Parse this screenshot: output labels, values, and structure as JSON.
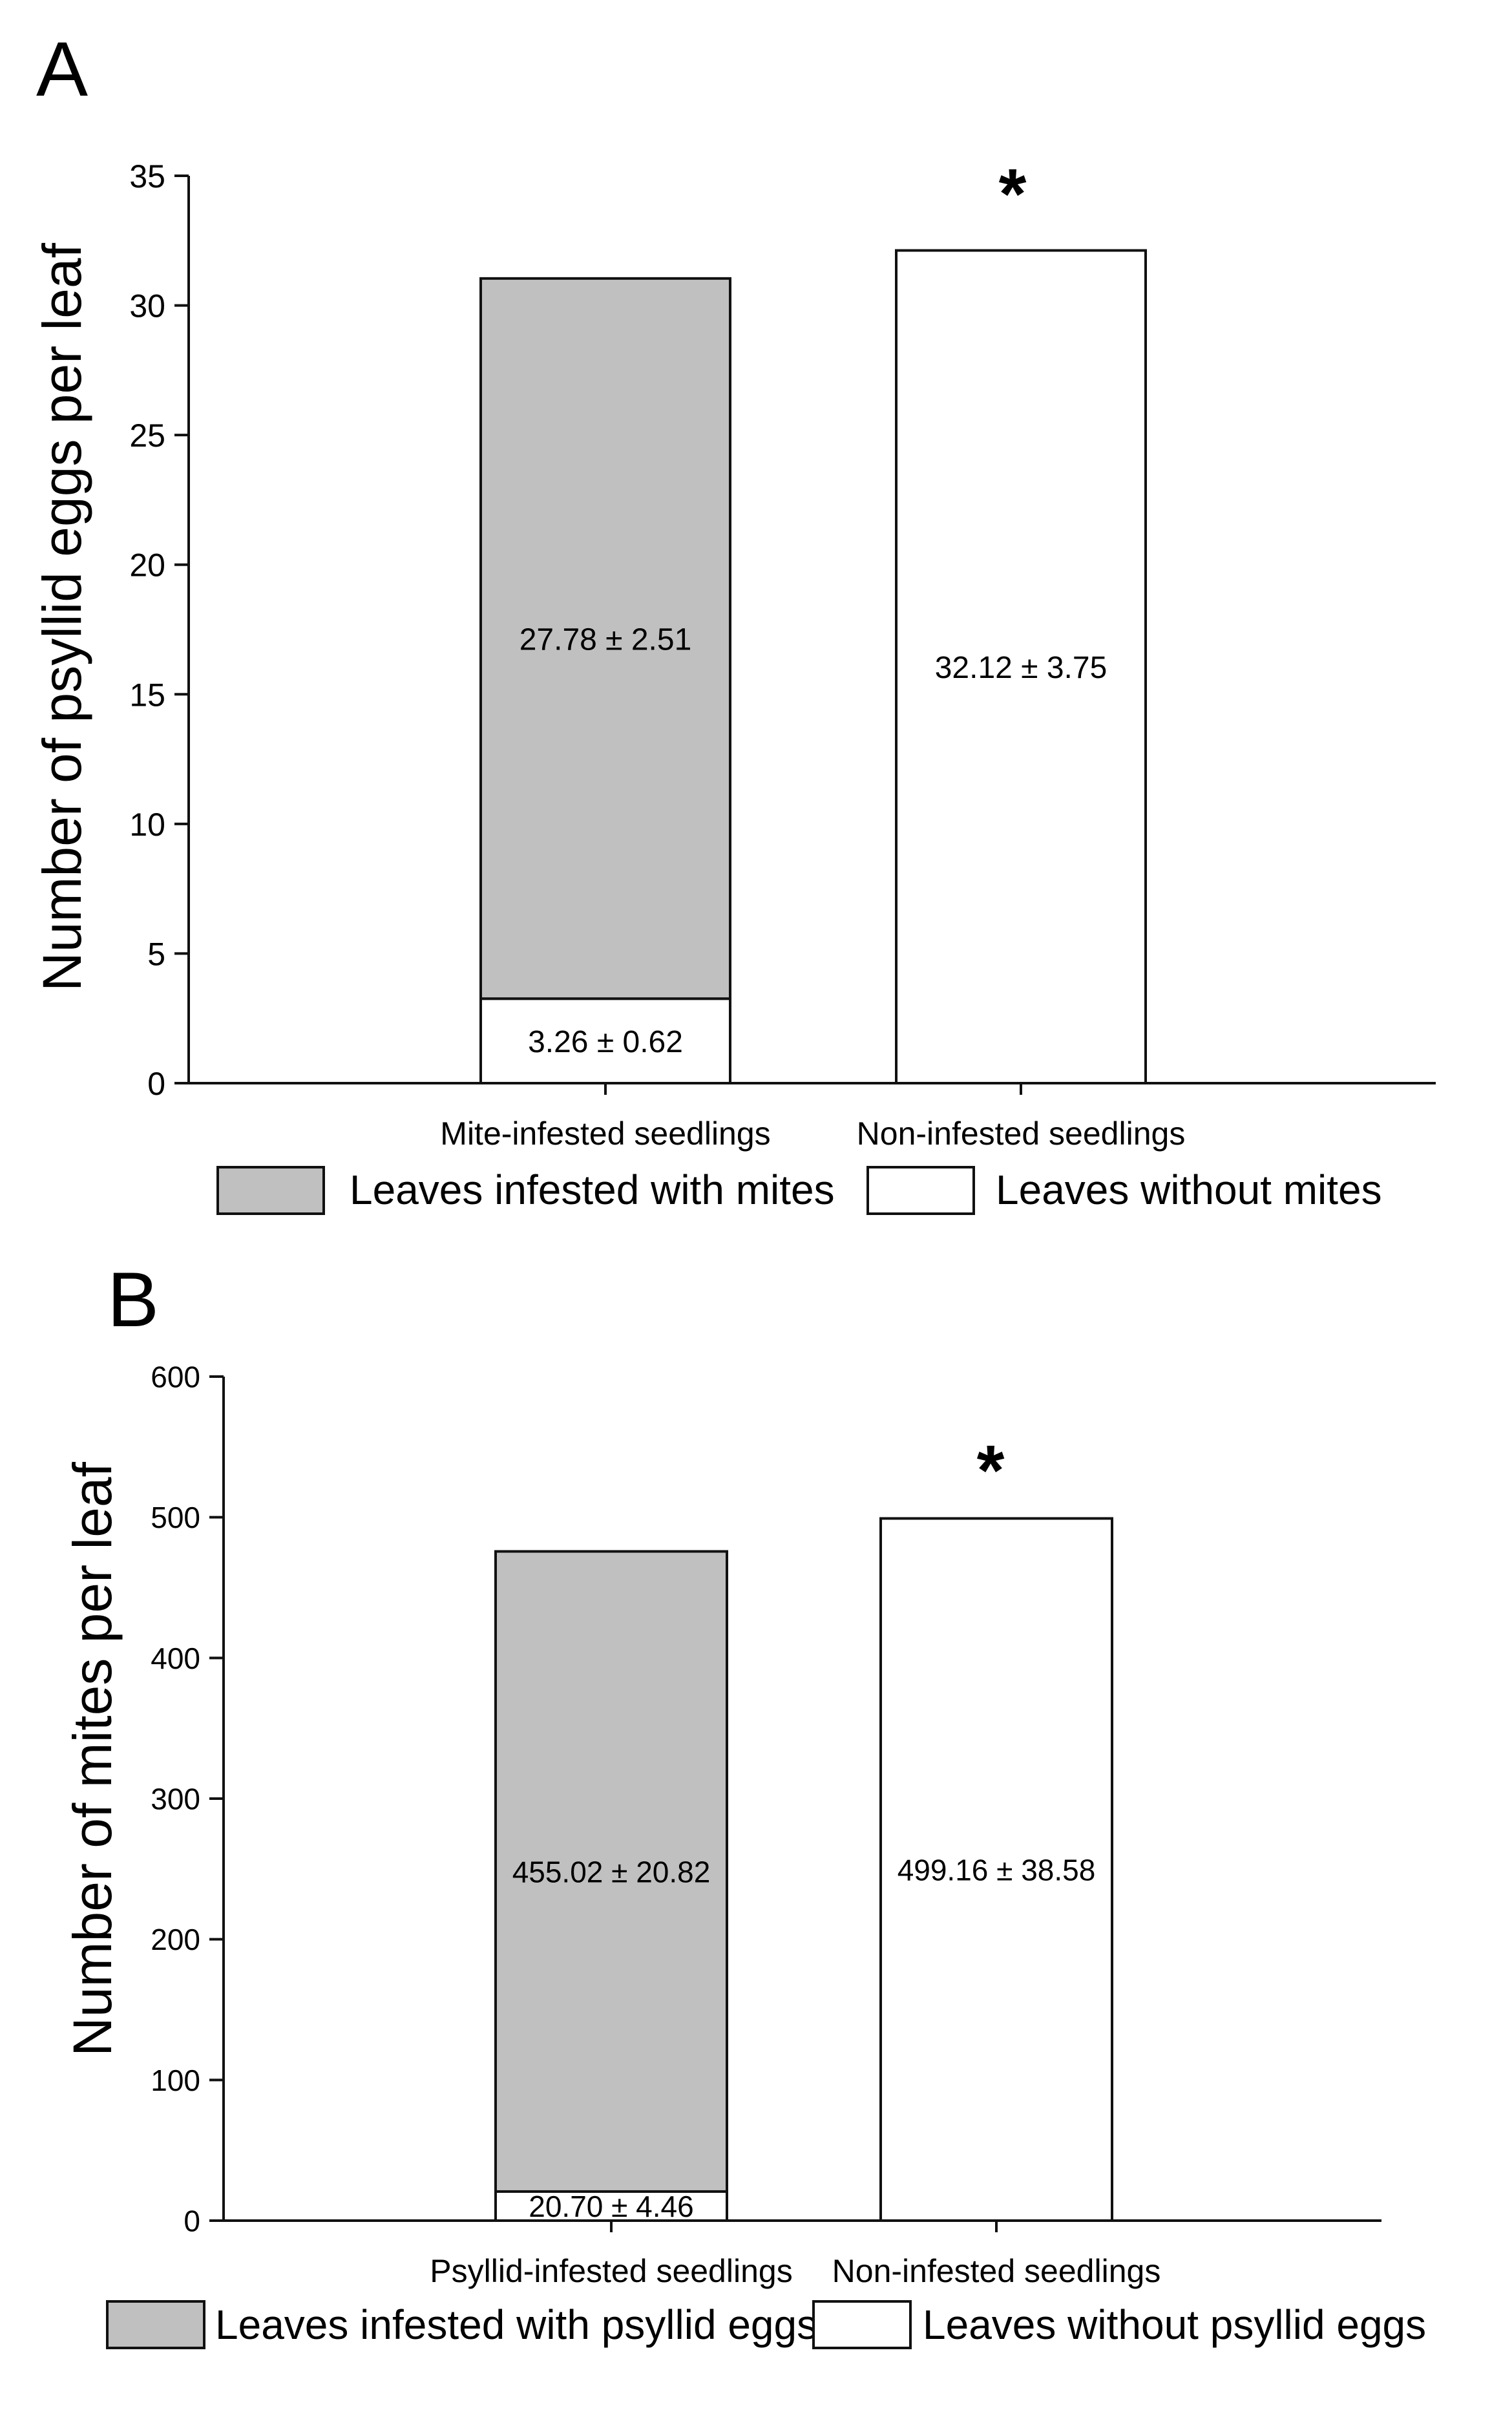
{
  "chart_data": [
    {
      "panel_label": "A",
      "type": "bar",
      "stacked": true,
      "categories": [
        "Mite-infested seedlings",
        "Non-infested seedlings"
      ],
      "ylabel": "Number of psyllid eggs per leaf",
      "ylim": [
        0,
        35
      ],
      "yticks": [
        "0",
        "5",
        "10",
        "15",
        "20",
        "25",
        "30",
        "35"
      ],
      "series": [
        {
          "name": "Leaves without mites",
          "color": "#ffffff",
          "values": [
            3.26,
            32.12
          ],
          "labels": [
            "3.26 ± 0.62",
            "32.12 ± 3.75"
          ]
        },
        {
          "name": "Leaves infested with mites",
          "color": "#c0c0c0",
          "values": [
            27.78,
            0
          ],
          "labels": [
            "27.78 ± 2.51",
            ""
          ]
        }
      ],
      "significance": {
        "category_index": 1,
        "marker": "*"
      },
      "legend": {
        "placement": "bottom",
        "items": [
          {
            "label": "Leaves infested with mites",
            "color": "#c0c0c0"
          },
          {
            "label": "Leaves without mites",
            "color": "#ffffff"
          }
        ]
      }
    },
    {
      "panel_label": "B",
      "type": "bar",
      "stacked": true,
      "categories": [
        "Psyllid-infested seedlings",
        "Non-infested seedlings"
      ],
      "ylabel": "Number of mites per leaf",
      "ylim": [
        0,
        600
      ],
      "yticks": [
        "0",
        "100",
        "200",
        "300",
        "400",
        "500",
        "600"
      ],
      "series": [
        {
          "name": "Leaves without psyllid eggs",
          "color": "#ffffff",
          "values": [
            20.7,
            499.16
          ],
          "labels": [
            "20.70 ± 4.46",
            "499.16 ± 38.58"
          ]
        },
        {
          "name": "Leaves infested with psyllid eggs",
          "color": "#c0c0c0",
          "values": [
            455.02,
            0
          ],
          "labels": [
            "455.02 ± 20.82",
            ""
          ]
        }
      ],
      "significance": {
        "category_index": 1,
        "marker": "*"
      },
      "legend": {
        "placement": "bottom",
        "items": [
          {
            "label": "Leaves infested with psyllid eggs",
            "color": "#c0c0c0"
          },
          {
            "label": "Leaves without psyllid eggs",
            "color": "#ffffff"
          }
        ]
      }
    }
  ]
}
